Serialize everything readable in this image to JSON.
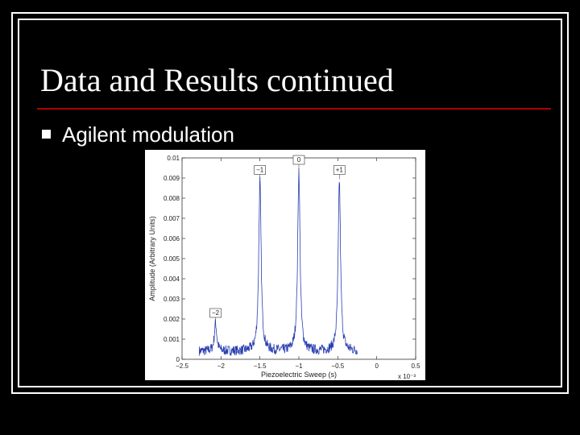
{
  "slide": {
    "title": "Data and Results continued",
    "bullet": "Agilent modulation",
    "accent_color": "#b00000",
    "bullet_icon": "square-bullet-icon"
  },
  "chart_data": {
    "type": "line",
    "xlabel": "Piezoelectric Sweep (s)",
    "ylabel": "Amplitude (Arbitrary Units)",
    "x_multiplier": "x 10⁻³",
    "y_multiplier": "0.01",
    "xlim": [
      -2.5,
      0.5
    ],
    "ylim": [
      0,
      0.01
    ],
    "x_ticks": [
      -2.5,
      -2,
      -1.5,
      -1,
      -0.5,
      0,
      0.5
    ],
    "x_tick_labels": [
      "−2.5",
      "−2",
      "−1.5",
      "−1",
      "−0.5",
      "0",
      "0.5"
    ],
    "y_ticks": [
      0,
      0.001,
      0.002,
      0.003,
      0.004,
      0.005,
      0.006,
      0.007,
      0.008,
      0.009,
      0.01
    ],
    "y_tick_labels": [
      "0",
      "0.001",
      "0.002",
      "0.003",
      "0.004",
      "0.005",
      "0.006",
      "0.007",
      "0.008",
      "0.009",
      "0.01"
    ],
    "grid": false,
    "line_color": "#2a3fb0",
    "x_range": [
      -2.28,
      -0.25
    ],
    "baseline": 0.0004,
    "peaks": [
      {
        "label": "−2",
        "x": -2.07,
        "y": 0.0018
      },
      {
        "label": "−1",
        "x": -1.5,
        "y": 0.0089
      },
      {
        "label": "0",
        "x": -1.0,
        "y": 0.0094
      },
      {
        "label": "+1",
        "x": -0.48,
        "y": 0.0089
      }
    ]
  }
}
